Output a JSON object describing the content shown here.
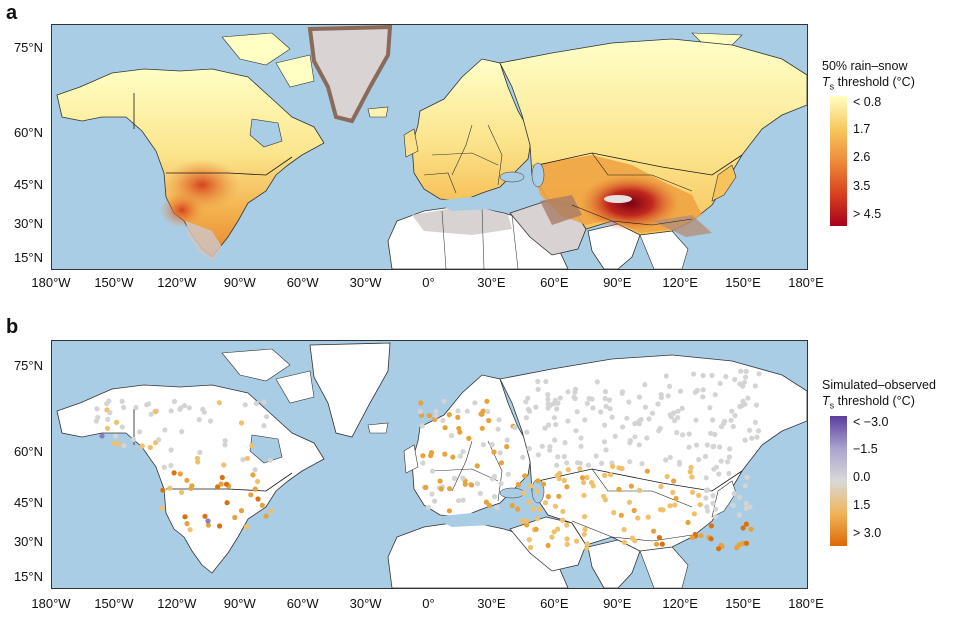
{
  "panel_a": {
    "letter": "a",
    "legend_line1": "50% rain–snow",
    "legend_italic": "T",
    "legend_sub": "s",
    "legend_line2_rest": " threshold (°C)",
    "legend_labels": [
      "< 0.8",
      "1.7",
      "2.6",
      "3.5",
      "> 4.5"
    ],
    "legend_colors": [
      "#ffffc4",
      "#f7c95f",
      "#ee8b3a",
      "#d9421f",
      "#a8001b"
    ]
  },
  "panel_b": {
    "letter": "b",
    "legend_line1": "Simulated–observed",
    "legend_italic": "T",
    "legend_sub": "s",
    "legend_line2_rest": " threshold (°C)",
    "legend_labels": [
      "< −3.0",
      "−1.5",
      "0.0",
      "1.5",
      "> 3.0"
    ],
    "legend_colors": [
      "#5a3d9e",
      "#aaa3cf",
      "#d9d9d9",
      "#f0b45a",
      "#dd6a06"
    ]
  },
  "axes": {
    "lat_labels": [
      "75°N",
      "60°N",
      "45°N",
      "30°N",
      "15°N"
    ],
    "lon_labels": [
      "180°W",
      "150°W",
      "120°W",
      "90°W",
      "60°W",
      "30°W",
      "0°",
      "30°E",
      "60°E",
      "90°E",
      "120°E",
      "150°E",
      "180°E"
    ]
  },
  "colors": {
    "ocean": "#a9cde4",
    "land_outside": "#ffffff",
    "no_data": "#d4cfcf",
    "boundary": "#1a1a1a"
  }
}
